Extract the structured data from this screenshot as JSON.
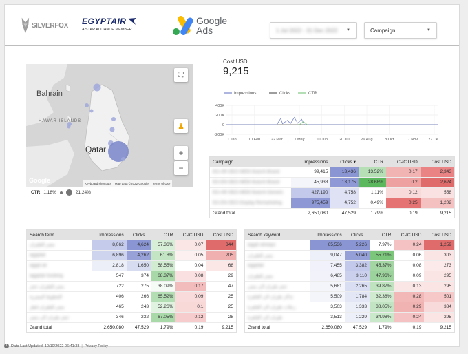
{
  "header": {
    "logos": {
      "silverfox": "SILVERFOX",
      "egyptair": "EGYPTAIR",
      "egyptair_sub": "A STAR ALLIANCE MEMBER",
      "google_ads": "Google Ads"
    },
    "date_range_value": "1 Jul 2022 - 31 Dec 2022",
    "campaign_filter_label": "Campaign",
    "icons": [
      "chevron-down-icon"
    ]
  },
  "map": {
    "labels": {
      "bahrain": "Bahrain",
      "hawar": "HAWAR ISLANDS",
      "qatar": "Qatar"
    },
    "attribution": {
      "google": "Google",
      "shortcuts": "Keyboard shortcuts",
      "map_data": "Map data ©2022 Google",
      "terms": "Terms of Use"
    },
    "legend": {
      "metric": "CTR",
      "min": "1.18%",
      "max": "21.24%"
    },
    "icons": [
      "fullscreen-icon",
      "pegman-icon",
      "zoom-in-icon",
      "zoom-out-icon"
    ]
  },
  "scorecard": {
    "label": "Cost USD",
    "value": "9,215"
  },
  "chart_data": {
    "type": "line",
    "series": [
      {
        "name": "Impressions",
        "color": "#7986cb"
      },
      {
        "name": "Clicks",
        "color": "#5c5c5c"
      },
      {
        "name": "CTR",
        "color": "#81c784"
      }
    ],
    "x_ticks": [
      "1 Jan",
      "10 Feb",
      "22 Mar",
      "1 May",
      "10 Jun",
      "20 Jul",
      "29 Aug",
      "8 Oct",
      "17 Nov",
      "27 Dec"
    ],
    "y_ticks": [
      "400K",
      "200K",
      "0",
      "-200K"
    ],
    "ylim": [
      -200000,
      400000
    ],
    "impressions_points": [
      {
        "x": "22 Mar",
        "y": 0
      },
      {
        "x": "25 Mar",
        "y": 60000
      },
      {
        "x": "29 Mar",
        "y": 130000
      },
      {
        "x": "1 Apr",
        "y": 20000
      },
      {
        "x": "10 Apr",
        "y": 90000
      },
      {
        "x": "15 Apr",
        "y": 20000
      },
      {
        "x": "22 Apr",
        "y": 150000
      },
      {
        "x": "28 Apr",
        "y": 30000
      },
      {
        "x": "5 May",
        "y": 110000
      },
      {
        "x": "10 May",
        "y": 0
      }
    ],
    "ctr_points": [
      {
        "x": "1 May",
        "y": 0
      },
      {
        "x": "8 May",
        "y": 60000
      },
      {
        "x": "15 May",
        "y": 0
      }
    ],
    "grid": true,
    "legend_position": "top-left"
  },
  "campaign_table": {
    "columns": [
      "Campaign",
      "Impressions",
      "Clicks ▾",
      "CTR",
      "CPC USD",
      "Cost USD"
    ],
    "rows": [
      {
        "name": "EG-AR-SEO-WEB-Search-Brand",
        "impressions": "99,415",
        "clicks": "13,436",
        "ctr": "13.52%",
        "cpc": "0.17",
        "cost": "2,343"
      },
      {
        "name": "EG-EN-SEO-WEB-Search-Brand",
        "impressions": "45,938",
        "clicks": "13,175",
        "ctr": "28.68%",
        "cpc": "0.2",
        "cost": "2,624"
      },
      {
        "name": "EG-AR-SEO-WEB-Search-Generic",
        "impressions": "427,190",
        "clicks": "4,758",
        "ctr": "1.11%",
        "cpc": "0.12",
        "cost": "558"
      },
      {
        "name": "EG-EN-SEO-Display-Remarketing",
        "impressions": "975,459",
        "clicks": "4,752",
        "ctr": "0.49%",
        "cpc": "0.25",
        "cost": "1,202"
      }
    ],
    "total": {
      "label": "Grand total",
      "impressions": "2,650,080",
      "clicks": "47,529",
      "ctr": "1.79%",
      "cpc": "0.19",
      "cost": "9,215"
    }
  },
  "search_term_table": {
    "columns": [
      "Search term",
      "Impressions",
      "Clicks...",
      "CTR",
      "CPC USD",
      "Cost USD"
    ],
    "rows": [
      {
        "name": "مصر للطيران",
        "impressions": "8,062",
        "clicks": "4,624",
        "ctr": "57.36%",
        "cpc": "0.07",
        "cost": "344"
      },
      {
        "name": "egyptair",
        "impressions": "6,896",
        "clicks": "4,262",
        "ctr": "61.8%",
        "cpc": "0.05",
        "cost": "205"
      },
      {
        "name": "egypt air",
        "impressions": "2,818",
        "clicks": "1,650",
        "ctr": "58.55%",
        "cpc": "0.04",
        "cost": "68"
      },
      {
        "name": "egyptair booking",
        "impressions": "547",
        "clicks": "374",
        "ctr": "68.37%",
        "cpc": "0.08",
        "cost": "29"
      },
      {
        "name": "مصر للطيران حجز",
        "impressions": "722",
        "clicks": "275",
        "ctr": "38.09%",
        "cpc": "0.17",
        "cost": "47"
      },
      {
        "name": "الخطوط المصرية",
        "impressions": "406",
        "clicks": "266",
        "ctr": "65.52%",
        "cpc": "0.09",
        "cost": "25"
      },
      {
        "name": "مصر للطيران قطر",
        "impressions": "465",
        "clicks": "243",
        "ctr": "52.26%",
        "cpc": "0.1",
        "cost": "25"
      },
      {
        "name": "حجز طيران الى مصر",
        "impressions": "346",
        "clicks": "232",
        "ctr": "67.05%",
        "cpc": "0.12",
        "cost": "28"
      }
    ],
    "total": {
      "label": "Grand total",
      "impressions": "2,650,080",
      "clicks": "47,529",
      "ctr": "1.79%",
      "cpc": "0.19",
      "cost": "9,215"
    }
  },
  "search_keyword_table": {
    "columns": [
      "Search keyword",
      "Impressions",
      "Clicks...",
      "CTR",
      "CPC USD",
      "Cost USD"
    ],
    "rows": [
      {
        "name": "egypt airways",
        "impressions": "65,536",
        "clicks": "5,226",
        "ctr": "7.97%",
        "cpc": "0.24",
        "cost": "1,259"
      },
      {
        "name": "مصر للطيران",
        "impressions": "9,047",
        "clicks": "5,040",
        "ctr": "55.71%",
        "cpc": "0.06",
        "cost": "303"
      },
      {
        "name": "egyptair",
        "impressions": "7,455",
        "clicks": "3,382",
        "ctr": "45.37%",
        "cpc": "0.08",
        "cost": "273"
      },
      {
        "name": "مصر للطيران",
        "impressions": "6,485",
        "clicks": "3,110",
        "ctr": "47.96%",
        "cpc": "0.09",
        "cost": "295"
      },
      {
        "name": "حجز طيران الى مصر",
        "impressions": "5,681",
        "clicks": "2,265",
        "ctr": "39.87%",
        "cpc": "0.13",
        "cost": "295"
      },
      {
        "name": "تذاكر طيران الى القاهرة",
        "impressions": "5,509",
        "clicks": "1,784",
        "ctr": "32.38%",
        "cpc": "0.28",
        "cost": "501"
      },
      {
        "name": "رحلات طيران الى القاهرة",
        "impressions": "3,503",
        "clicks": "1,333",
        "ctr": "38.05%",
        "cpc": "0.29",
        "cost": "384"
      },
      {
        "name": "طيران الى القاهرة",
        "impressions": "3,513",
        "clicks": "1,229",
        "ctr": "34.98%",
        "cpc": "0.24",
        "cost": "295"
      }
    ],
    "total": {
      "label": "Grand total",
      "impressions": "2,650,080",
      "clicks": "47,529",
      "ctr": "1.79%",
      "cpc": "0.19",
      "cost": "9,215"
    }
  },
  "footer": {
    "updated": "Data Last Updated: 10/10/2022 06:41:38",
    "privacy": "Privacy Policy",
    "icons": [
      "info-icon"
    ]
  },
  "colors": {
    "blue_heat": "#7986cb",
    "green_heat": "#66bb6a",
    "red_heat": "#e57373",
    "header_gray": "#e2e2e2"
  }
}
